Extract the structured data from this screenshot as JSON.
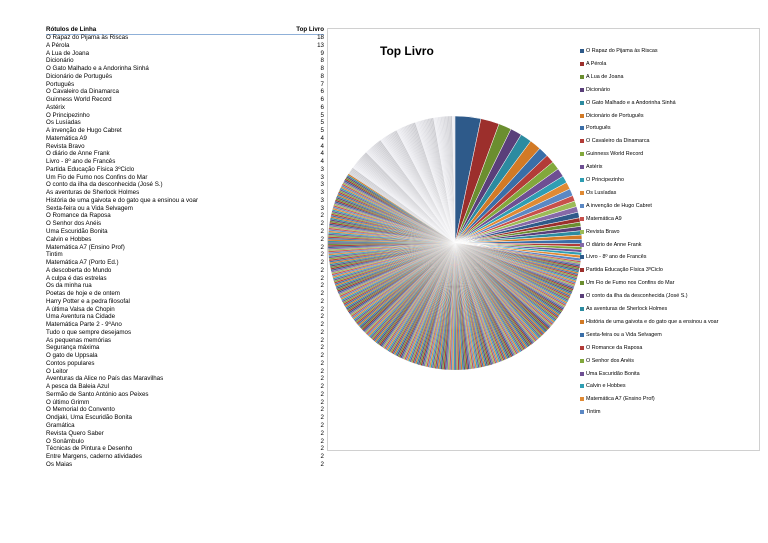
{
  "table": {
    "header_label": "Rótulos de Linha",
    "header_value": "Top Livro",
    "rows": [
      {
        "name": "O Rapaz do Pijama às Riscas",
        "value": 18
      },
      {
        "name": "A Pérola",
        "value": 13
      },
      {
        "name": "A Lua de Joana",
        "value": 9
      },
      {
        "name": "Dicionário",
        "value": 8
      },
      {
        "name": "O Gato Malhado e a Andorinha Sinhá",
        "value": 8
      },
      {
        "name": "Dicionário de Português",
        "value": 8
      },
      {
        "name": "Português",
        "value": 7
      },
      {
        "name": "O Cavaleiro da Dinamarca",
        "value": 6
      },
      {
        "name": "Guinness World Record",
        "value": 6
      },
      {
        "name": "Astérix",
        "value": 6
      },
      {
        "name": "O Principezinho",
        "value": 5
      },
      {
        "name": "Os Lusíadas",
        "value": 5
      },
      {
        "name": "A invenção de Hugo Cabret",
        "value": 5
      },
      {
        "name": "Matemática A9",
        "value": 4
      },
      {
        "name": "Revista Bravo",
        "value": 4
      },
      {
        "name": "O diário de Anne Frank",
        "value": 4
      },
      {
        "name": "Livro - 8º ano de Francês",
        "value": 4
      },
      {
        "name": "Partida Educação Física 3ºCiclo",
        "value": 3
      },
      {
        "name": "Um Fio de Fumo nos Confins do Mar",
        "value": 3
      },
      {
        "name": "O conto da ilha da desconhecida (José S.)",
        "value": 3
      },
      {
        "name": "As aventuras de Sherlock Holmes",
        "value": 3
      },
      {
        "name": "História de uma gaivota e do gato que a ensinou a voar",
        "value": 3
      },
      {
        "name": "Sexta-feira ou a Vida Selvagem",
        "value": 3
      },
      {
        "name": "O Romance da Raposa",
        "value": 2
      },
      {
        "name": "O Senhor dos Anéis",
        "value": 2
      },
      {
        "name": "Uma Escuridão Bonita",
        "value": 2
      },
      {
        "name": "Calvin e Hobbes",
        "value": 2
      },
      {
        "name": "Matemática A7 (Ensino Prof)",
        "value": 2
      },
      {
        "name": "Tintim",
        "value": 2
      },
      {
        "name": "Matemática A7 (Porto Ed.)",
        "value": 2
      },
      {
        "name": "A descoberta do Mundo",
        "value": 2
      },
      {
        "name": "A culpa é das estrelas",
        "value": 2
      },
      {
        "name": "Os da minha rua",
        "value": 2
      },
      {
        "name": "Poetas de hoje e de ontem",
        "value": 2
      },
      {
        "name": "Harry Potter e a pedra filosofal",
        "value": 2
      },
      {
        "name": "A última Valsa de Chopin",
        "value": 2
      },
      {
        "name": "Uma Aventura na Cidade",
        "value": 2
      },
      {
        "name": "Matemática Parte 2 - 9ºAno",
        "value": 2
      },
      {
        "name": "Tudo o que sempre desejamos",
        "value": 2
      },
      {
        "name": "As pequenas memórias",
        "value": 2
      },
      {
        "name": "Segurança máxima",
        "value": 2
      },
      {
        "name": "O gato de Uppsala",
        "value": 2
      },
      {
        "name": "Contos populares",
        "value": 2
      },
      {
        "name": "O Leitor",
        "value": 2
      },
      {
        "name": "Aventuras da Alice no País das Maravilhas",
        "value": 2
      },
      {
        "name": "A pesca da Baleia Azul",
        "value": 2
      },
      {
        "name": "Sermão de Santo António aos Peixes",
        "value": 2
      },
      {
        "name": "O último Grimm",
        "value": 2
      },
      {
        "name": "O Memorial do Convento",
        "value": 2
      },
      {
        "name": "Ondjaki, Uma Escuridão Bonita",
        "value": 2
      },
      {
        "name": "Gramática",
        "value": 2
      },
      {
        "name": "Revista Quero Saber",
        "value": 2
      },
      {
        "name": "O Sonâmbulo",
        "value": 2
      },
      {
        "name": "Técnicas de Pintura e Desenho",
        "value": 2
      },
      {
        "name": "Entre Margens, caderno atividades",
        "value": 2
      },
      {
        "name": "Os Maias",
        "value": 2
      }
    ]
  },
  "chart_data": {
    "type": "pie",
    "title": "Top Livro",
    "legend_position": "right",
    "categories": [
      "O Rapaz do Pijama às Riscas",
      "A Pérola",
      "A Lua de Joana",
      "Dicionário",
      "O Gato Malhado e a Andorinha Sinhá",
      "Dicionário de Português",
      "Português",
      "O Cavaleiro da Dinamarca",
      "Guinness World Record",
      "Astérix",
      "O Principezinho",
      "Os Lusíadas",
      "A invenção de Hugo Cabret",
      "Matemática A9",
      "Revista Bravo",
      "O diário de Anne Frank",
      "Livro - 8º ano de Francês",
      "Partida Educação Física 3ºCiclo",
      "Um Fio de Fumo nos Confins do Mar",
      "O conto da ilha da desconhecida (José S.)",
      "As aventuras de Sherlock Holmes",
      "História de uma gaivota e do gato que a ensinou a voar",
      "Sexta-feira ou a Vida Selvagem",
      "O Romance da Raposa",
      "O Senhor dos Anéis",
      "Uma Escuridão Bonita",
      "Calvin e Hobbes",
      "Matemática A7 (Ensino Prof)",
      "Tintim"
    ],
    "values": [
      18,
      13,
      9,
      8,
      8,
      8,
      7,
      6,
      6,
      6,
      5,
      5,
      5,
      4,
      4,
      4,
      4,
      3,
      3,
      3,
      3,
      3,
      3,
      2,
      2,
      2,
      2,
      2,
      2
    ],
    "additional_slices_count": 400,
    "additional_slice_value": 1,
    "colors": [
      "#2e5a8a",
      "#9c2f2c",
      "#6b8e2f",
      "#5a3f7a",
      "#2c8ba0",
      "#d27a26",
      "#3a6ea8",
      "#b33c38",
      "#82a83c",
      "#6e4f93",
      "#2f9eb3",
      "#e08a34",
      "#5b88c4",
      "#c8504b",
      "#9cbb57",
      "#8569a8"
    ]
  }
}
